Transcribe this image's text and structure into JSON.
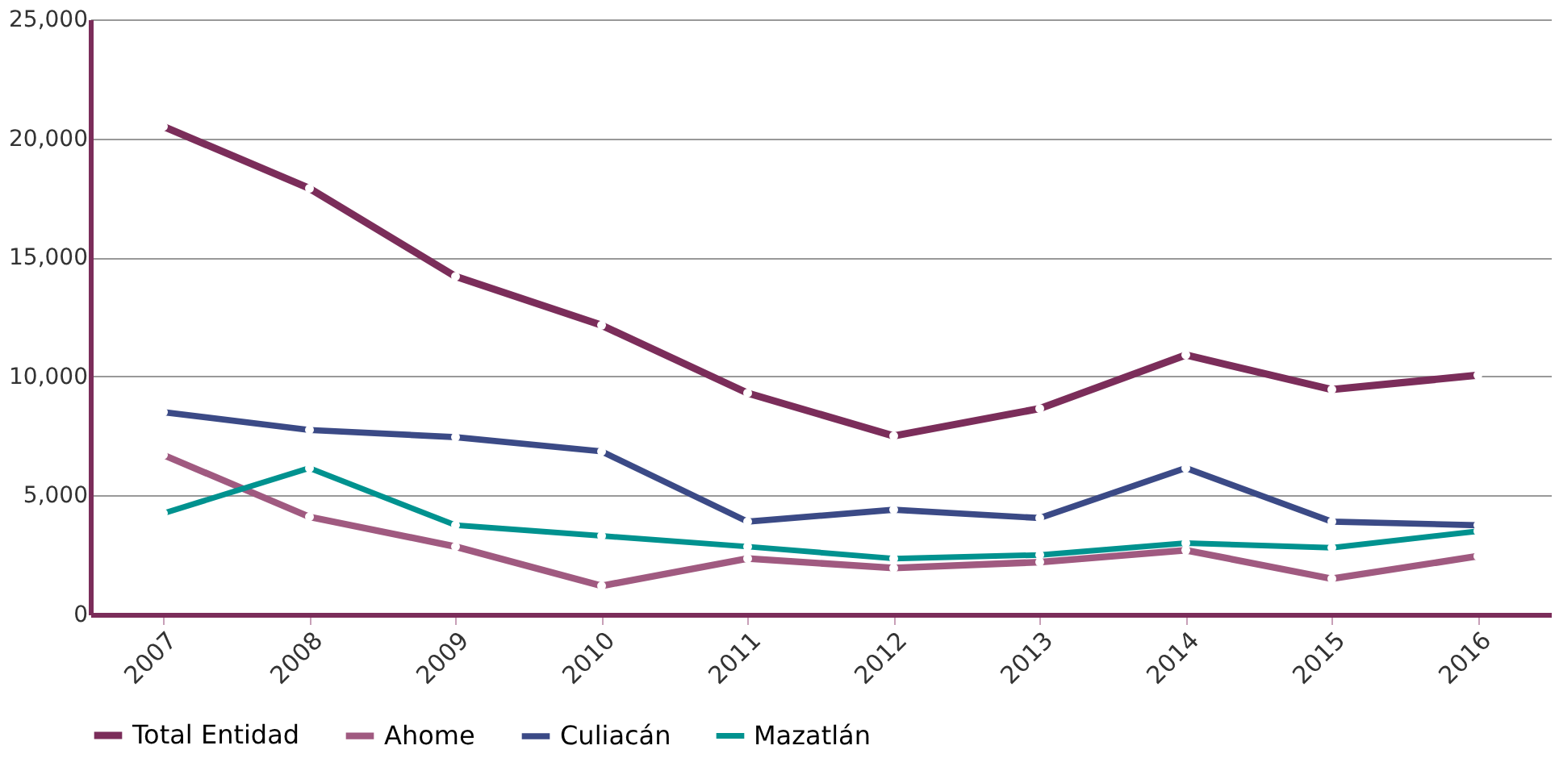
{
  "chart_data": {
    "type": "line",
    "categories": [
      "2007",
      "2008",
      "2009",
      "2010",
      "2011",
      "2012",
      "2013",
      "2014",
      "2015",
      "2016"
    ],
    "series": [
      {
        "name": "Total Entidad",
        "color": "#7b2d5a",
        "values": [
          20500,
          17900,
          14200,
          12150,
          9300,
          7500,
          8650,
          10900,
          9450,
          10050
        ]
      },
      {
        "name": "Ahome",
        "color": "#a05a80",
        "values": [
          6700,
          4100,
          2850,
          1200,
          2350,
          1950,
          2200,
          2700,
          1500,
          2450
        ]
      },
      {
        "name": "Culiacán",
        "color": "#3b4a86",
        "values": [
          8500,
          7750,
          7450,
          6850,
          3900,
          4400,
          4050,
          6150,
          3900,
          3750
        ]
      },
      {
        "name": "Mazatlán",
        "color": "#00928f",
        "values": [
          4250,
          6150,
          3750,
          3300,
          2850,
          2350,
          2500,
          3000,
          2800,
          3500
        ]
      }
    ],
    "ylim": [
      0,
      25000
    ],
    "yticks": [
      0,
      {
        "value": 5000,
        "label": "5,000"
      },
      {
        "value": 10000,
        "label": "10,000"
      },
      {
        "value": 15000,
        "label": "15,000"
      },
      {
        "value": 20000,
        "label": "20,000"
      },
      {
        "value": 25000,
        "label": "25,000"
      }
    ],
    "grid": "y",
    "legend": "bottom left",
    "marker": "circle",
    "line_style": "solid"
  }
}
